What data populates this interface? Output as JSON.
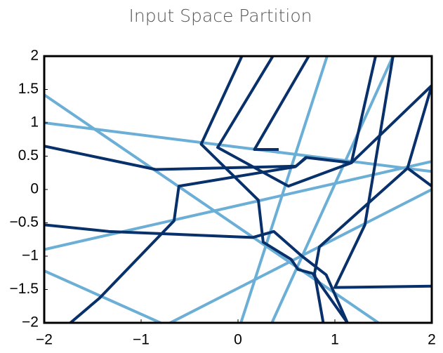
{
  "chart_data": {
    "type": "line",
    "title": "Input Space Partition",
    "xlim": [
      -2,
      2
    ],
    "ylim": [
      -2,
      2
    ],
    "xticks": [
      {
        "value": -2,
        "label": "−2"
      },
      {
        "value": -1,
        "label": "−1"
      },
      0,
      1,
      2
    ],
    "yticks": [
      {
        "value": -2,
        "label": "−2"
      },
      {
        "value": -1.5,
        "label": "−1.5"
      },
      {
        "value": -1,
        "label": "−1"
      },
      {
        "value": -0.5,
        "label": "−0.5"
      },
      0,
      0.5,
      1,
      1.5,
      2
    ],
    "series": [
      {
        "color": "#6baed6",
        "x": [
          -2,
          1.45
        ],
        "values": [
          1.42,
          -2
        ]
      },
      {
        "color": "#6baed6",
        "x": [
          -2,
          -0.8
        ],
        "values": [
          -1.22,
          -2
        ]
      },
      {
        "color": "#6baed6",
        "x": [
          -2,
          2
        ],
        "values": [
          1.0,
          0.27
        ]
      },
      {
        "color": "#6baed6",
        "x": [
          -2,
          2
        ],
        "values": [
          -0.9,
          0.42
        ]
      },
      {
        "color": "#6baed6",
        "x": [
          -0.7,
          2
        ],
        "values": [
          -2,
          0.0
        ]
      },
      {
        "color": "#6baed6",
        "x": [
          0.03,
          0.92
        ],
        "values": [
          -2,
          2
        ]
      },
      {
        "color": "#6baed6",
        "x": [
          0.35,
          1.6
        ],
        "values": [
          -2,
          2
        ]
      },
      {
        "color": "#08306b",
        "x": [
          -2,
          -0.85,
          0.6,
          0.7,
          1.17,
          2
        ],
        "values": [
          0.65,
          0.3,
          0.35,
          0.48,
          0.4,
          1.56
        ]
      },
      {
        "color": "#08306b",
        "x": [
          -2,
          -1.33,
          0.15,
          0.37,
          0.66,
          0.91,
          1.13
        ],
        "values": [
          -0.53,
          -0.63,
          -0.72,
          -0.63,
          -1.0,
          -1.28,
          -2
        ]
      },
      {
        "color": "#08306b",
        "x": [
          -1.73,
          -1.43,
          -0.66,
          -0.61,
          0.59,
          0.7
        ],
        "values": [
          -2,
          -1.63,
          -0.47,
          0.05,
          0.34,
          0.47
        ]
      },
      {
        "color": "#08306b",
        "x": [
          0.04,
          -0.38,
          0.21,
          0.26,
          0.55,
          0.62,
          0.77,
          1.13
        ],
        "values": [
          2,
          0.68,
          -0.16,
          -0.79,
          -1.05,
          -1.2,
          -1.26,
          -2
        ]
      },
      {
        "color": "#08306b",
        "x": [
          0.36,
          -0.21,
          0.52,
          1.17,
          1.42
        ],
        "values": [
          2,
          0.63,
          0.05,
          0.4,
          2
        ]
      },
      {
        "color": "#08306b",
        "x": [
          0.73,
          0.17,
          0.42
        ],
        "values": [
          2,
          0.6,
          0.6
        ]
      },
      {
        "color": "#08306b",
        "x": [
          2,
          1.75,
          0.84,
          0.79,
          0.88
        ],
        "values": [
          1.56,
          0.32,
          -0.86,
          -1.26,
          -2
        ]
      },
      {
        "color": "#08306b",
        "x": [
          1.6,
          1.31,
          1.0,
          2
        ],
        "values": [
          2,
          -0.53,
          -1.47,
          -1.45
        ]
      },
      {
        "color": "#08306b",
        "x": [
          1.75,
          2
        ],
        "values": [
          0.32,
          0.05
        ]
      }
    ]
  }
}
